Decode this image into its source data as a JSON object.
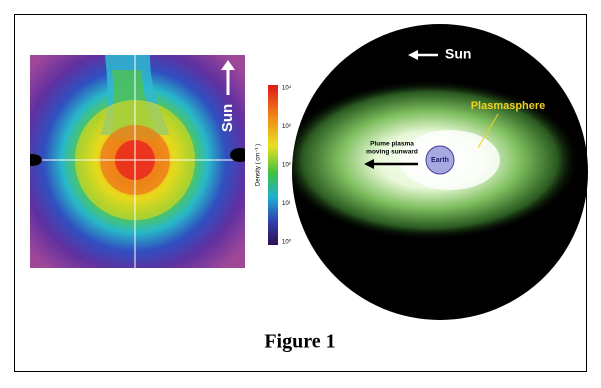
{
  "left_panel": {
    "sun_label": "Sun",
    "colorbar": {
      "label": "Density ( cm⁻³ )",
      "ticks": [
        "10⁴",
        "10³",
        "10²",
        "10¹",
        "10⁰"
      ]
    }
  },
  "right_panel": {
    "sun_label": "Sun",
    "plasmasphere_label": "Plasmasphere",
    "plume_label": [
      "Plume plasma",
      "moving sunward"
    ],
    "earth_label": "Earth"
  },
  "caption": "Figure 1"
}
